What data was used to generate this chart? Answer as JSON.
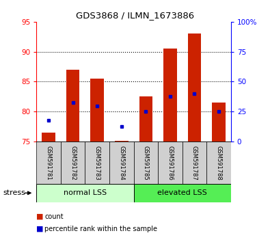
{
  "title": "GDS3868 / ILMN_1673886",
  "samples": [
    "GSM591781",
    "GSM591782",
    "GSM591783",
    "GSM591784",
    "GSM591785",
    "GSM591786",
    "GSM591787",
    "GSM591788"
  ],
  "bar_bottom": 75,
  "counts": [
    76.5,
    87.0,
    85.5,
    75.1,
    82.5,
    90.5,
    93.0,
    81.5
  ],
  "percentiles": [
    78.5,
    81.5,
    81.0,
    77.5,
    80.0,
    82.5,
    83.0,
    80.0
  ],
  "bar_color": "#cc2200",
  "pct_color": "#0000cc",
  "ylim_left": [
    75,
    95
  ],
  "ylim_right": [
    0,
    100
  ],
  "yticks_left": [
    75,
    80,
    85,
    90,
    95
  ],
  "yticks_right": [
    0,
    25,
    50,
    75,
    100
  ],
  "ytick_labels_right": [
    "0",
    "25",
    "50",
    "75",
    "100%"
  ],
  "groups": [
    {
      "label": "normal LSS",
      "start": 0,
      "end": 4,
      "color": "#ccffcc"
    },
    {
      "label": "elevated LSS",
      "start": 4,
      "end": 8,
      "color": "#55ee55"
    }
  ],
  "stress_label": "stress",
  "legend": [
    {
      "label": "count",
      "color": "#cc2200"
    },
    {
      "label": "percentile rank within the sample",
      "color": "#0000cc"
    }
  ],
  "background_color": "#ffffff",
  "plot_bg_color": "#ffffff",
  "label_box_color": "#d0d0d0",
  "grid_yticks": [
    80,
    85,
    90
  ]
}
